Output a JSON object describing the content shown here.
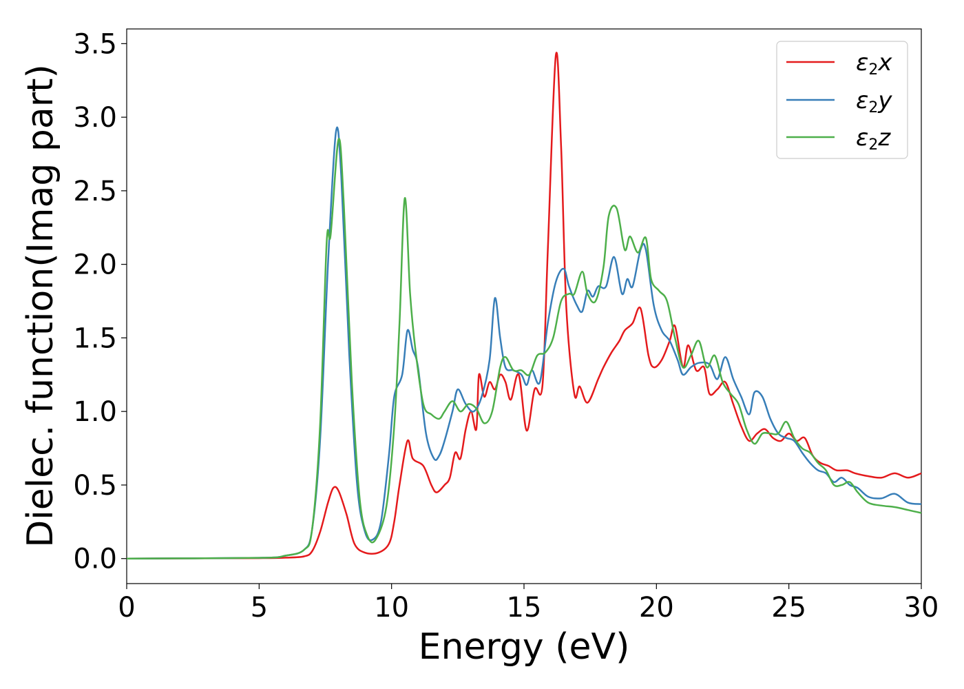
{
  "chart_data": {
    "type": "line",
    "title": "",
    "xlabel": "Energy (eV)",
    "ylabel": "Dielec. function(Imag part)",
    "xlim": [
      0,
      30
    ],
    "ylim": [
      -0.17,
      3.6
    ],
    "xticks": [
      0,
      5,
      10,
      15,
      20,
      25,
      30
    ],
    "xtick_labels": [
      "0",
      "5",
      "10",
      "15",
      "20",
      "25",
      "30"
    ],
    "yticks": [
      0.0,
      0.5,
      1.0,
      1.5,
      2.0,
      2.5,
      3.0,
      3.5
    ],
    "ytick_labels": [
      "0.0",
      "0.5",
      "1.0",
      "1.5",
      "2.0",
      "2.5",
      "3.0",
      "3.5"
    ],
    "grid": false,
    "legend_position": "top-right",
    "series": [
      {
        "name": "ε₂x",
        "legend_base": "ε",
        "legend_sub": "2",
        "legend_var": "x",
        "color": "#e41a1c",
        "points": [
          [
            0,
            0.0
          ],
          [
            5,
            0.003
          ],
          [
            6,
            0.006
          ],
          [
            6.7,
            0.015
          ],
          [
            7.0,
            0.05
          ],
          [
            7.3,
            0.18
          ],
          [
            7.6,
            0.38
          ],
          [
            7.8,
            0.48
          ],
          [
            8.0,
            0.46
          ],
          [
            8.3,
            0.3
          ],
          [
            8.6,
            0.1
          ],
          [
            9.0,
            0.04
          ],
          [
            9.5,
            0.04
          ],
          [
            9.9,
            0.1
          ],
          [
            10.1,
            0.25
          ],
          [
            10.3,
            0.5
          ],
          [
            10.6,
            0.8
          ],
          [
            10.8,
            0.68
          ],
          [
            11.2,
            0.63
          ],
          [
            11.5,
            0.5
          ],
          [
            11.7,
            0.45
          ],
          [
            12.0,
            0.5
          ],
          [
            12.2,
            0.55
          ],
          [
            12.4,
            0.72
          ],
          [
            12.6,
            0.68
          ],
          [
            12.8,
            0.88
          ],
          [
            13.0,
            1.0
          ],
          [
            13.2,
            0.88
          ],
          [
            13.3,
            1.25
          ],
          [
            13.5,
            1.1
          ],
          [
            13.7,
            1.2
          ],
          [
            13.9,
            1.15
          ],
          [
            14.1,
            1.25
          ],
          [
            14.3,
            1.2
          ],
          [
            14.5,
            1.08
          ],
          [
            14.8,
            1.25
          ],
          [
            15.1,
            0.87
          ],
          [
            15.4,
            1.15
          ],
          [
            15.7,
            1.18
          ],
          [
            15.9,
            2.1
          ],
          [
            16.2,
            3.42
          ],
          [
            16.4,
            2.8
          ],
          [
            16.6,
            1.7
          ],
          [
            16.9,
            1.12
          ],
          [
            17.1,
            1.17
          ],
          [
            17.4,
            1.06
          ],
          [
            17.8,
            1.22
          ],
          [
            18.0,
            1.3
          ],
          [
            18.3,
            1.4
          ],
          [
            18.6,
            1.48
          ],
          [
            18.8,
            1.55
          ],
          [
            19.1,
            1.6
          ],
          [
            19.4,
            1.7
          ],
          [
            19.7,
            1.38
          ],
          [
            19.9,
            1.3
          ],
          [
            20.2,
            1.35
          ],
          [
            20.5,
            1.48
          ],
          [
            20.7,
            1.58
          ],
          [
            21.0,
            1.3
          ],
          [
            21.2,
            1.45
          ],
          [
            21.5,
            1.28
          ],
          [
            21.8,
            1.3
          ],
          [
            22.0,
            1.12
          ],
          [
            22.3,
            1.15
          ],
          [
            22.6,
            1.2
          ],
          [
            22.9,
            1.05
          ],
          [
            23.2,
            0.9
          ],
          [
            23.5,
            0.8
          ],
          [
            23.8,
            0.85
          ],
          [
            24.1,
            0.88
          ],
          [
            24.4,
            0.82
          ],
          [
            24.7,
            0.8
          ],
          [
            25.0,
            0.85
          ],
          [
            25.3,
            0.8
          ],
          [
            25.6,
            0.82
          ],
          [
            25.9,
            0.7
          ],
          [
            26.2,
            0.65
          ],
          [
            26.5,
            0.63
          ],
          [
            26.8,
            0.6
          ],
          [
            27.2,
            0.6
          ],
          [
            27.5,
            0.58
          ],
          [
            28.0,
            0.56
          ],
          [
            28.5,
            0.55
          ],
          [
            29.0,
            0.58
          ],
          [
            29.5,
            0.55
          ],
          [
            30.0,
            0.58
          ]
        ]
      },
      {
        "name": "ε₂y",
        "legend_base": "ε",
        "legend_sub": "2",
        "legend_var": "y",
        "color": "#377eb8",
        "points": [
          [
            0,
            0.0
          ],
          [
            5,
            0.005
          ],
          [
            6,
            0.02
          ],
          [
            6.7,
            0.06
          ],
          [
            7.0,
            0.2
          ],
          [
            7.3,
            0.8
          ],
          [
            7.6,
            2.0
          ],
          [
            7.9,
            2.9
          ],
          [
            8.1,
            2.6
          ],
          [
            8.4,
            1.4
          ],
          [
            8.7,
            0.5
          ],
          [
            9.0,
            0.18
          ],
          [
            9.3,
            0.13
          ],
          [
            9.6,
            0.25
          ],
          [
            9.9,
            0.7
          ],
          [
            10.1,
            1.1
          ],
          [
            10.4,
            1.25
          ],
          [
            10.6,
            1.55
          ],
          [
            10.8,
            1.42
          ],
          [
            11.0,
            1.3
          ],
          [
            11.3,
            0.85
          ],
          [
            11.6,
            0.68
          ],
          [
            11.8,
            0.7
          ],
          [
            12.0,
            0.8
          ],
          [
            12.3,
            1.0
          ],
          [
            12.5,
            1.15
          ],
          [
            12.8,
            1.05
          ],
          [
            13.1,
            1.0
          ],
          [
            13.4,
            1.1
          ],
          [
            13.7,
            1.35
          ],
          [
            13.9,
            1.77
          ],
          [
            14.1,
            1.5
          ],
          [
            14.3,
            1.3
          ],
          [
            14.6,
            1.28
          ],
          [
            14.9,
            1.25
          ],
          [
            15.1,
            1.18
          ],
          [
            15.3,
            1.28
          ],
          [
            15.6,
            1.2
          ],
          [
            15.9,
            1.6
          ],
          [
            16.2,
            1.88
          ],
          [
            16.5,
            1.97
          ],
          [
            16.7,
            1.85
          ],
          [
            17.0,
            1.72
          ],
          [
            17.2,
            1.68
          ],
          [
            17.4,
            1.82
          ],
          [
            17.6,
            1.78
          ],
          [
            17.8,
            1.85
          ],
          [
            18.1,
            1.85
          ],
          [
            18.4,
            2.05
          ],
          [
            18.7,
            1.8
          ],
          [
            18.9,
            1.9
          ],
          [
            19.1,
            1.85
          ],
          [
            19.4,
            2.1
          ],
          [
            19.6,
            2.1
          ],
          [
            19.9,
            1.72
          ],
          [
            20.2,
            1.55
          ],
          [
            20.5,
            1.48
          ],
          [
            20.8,
            1.35
          ],
          [
            21.0,
            1.25
          ],
          [
            21.3,
            1.3
          ],
          [
            21.6,
            1.33
          ],
          [
            22.0,
            1.32
          ],
          [
            22.3,
            1.22
          ],
          [
            22.6,
            1.37
          ],
          [
            22.9,
            1.22
          ],
          [
            23.2,
            1.1
          ],
          [
            23.5,
            0.98
          ],
          [
            23.7,
            1.13
          ],
          [
            24.0,
            1.1
          ],
          [
            24.3,
            0.95
          ],
          [
            24.6,
            0.85
          ],
          [
            24.9,
            0.82
          ],
          [
            25.2,
            0.8
          ],
          [
            25.5,
            0.72
          ],
          [
            25.8,
            0.65
          ],
          [
            26.1,
            0.6
          ],
          [
            26.4,
            0.58
          ],
          [
            26.7,
            0.52
          ],
          [
            27.0,
            0.55
          ],
          [
            27.3,
            0.5
          ],
          [
            27.6,
            0.48
          ],
          [
            28.0,
            0.42
          ],
          [
            28.5,
            0.41
          ],
          [
            29.0,
            0.44
          ],
          [
            29.5,
            0.38
          ],
          [
            30.0,
            0.37
          ]
        ]
      },
      {
        "name": "ε₂z",
        "legend_base": "ε",
        "legend_sub": "2",
        "legend_var": "z",
        "color": "#4daf4a",
        "points": [
          [
            0,
            0.0
          ],
          [
            5,
            0.005
          ],
          [
            6,
            0.02
          ],
          [
            6.7,
            0.06
          ],
          [
            7.0,
            0.2
          ],
          [
            7.3,
            0.9
          ],
          [
            7.55,
            2.15
          ],
          [
            7.7,
            2.2
          ],
          [
            8.0,
            2.85
          ],
          [
            8.2,
            2.4
          ],
          [
            8.5,
            1.2
          ],
          [
            8.8,
            0.4
          ],
          [
            9.1,
            0.15
          ],
          [
            9.4,
            0.13
          ],
          [
            9.8,
            0.35
          ],
          [
            10.1,
            0.9
          ],
          [
            10.3,
            1.6
          ],
          [
            10.5,
            2.45
          ],
          [
            10.7,
            1.8
          ],
          [
            10.9,
            1.42
          ],
          [
            11.2,
            1.05
          ],
          [
            11.5,
            0.98
          ],
          [
            11.8,
            0.95
          ],
          [
            12.0,
            1.0
          ],
          [
            12.3,
            1.07
          ],
          [
            12.6,
            1.0
          ],
          [
            12.9,
            1.05
          ],
          [
            13.2,
            1.02
          ],
          [
            13.5,
            0.92
          ],
          [
            13.8,
            1.0
          ],
          [
            14.1,
            1.3
          ],
          [
            14.3,
            1.37
          ],
          [
            14.6,
            1.28
          ],
          [
            14.9,
            1.28
          ],
          [
            15.2,
            1.25
          ],
          [
            15.5,
            1.38
          ],
          [
            15.8,
            1.4
          ],
          [
            16.1,
            1.5
          ],
          [
            16.4,
            1.75
          ],
          [
            16.7,
            1.8
          ],
          [
            16.9,
            1.8
          ],
          [
            17.2,
            1.95
          ],
          [
            17.4,
            1.8
          ],
          [
            17.7,
            1.75
          ],
          [
            18.0,
            1.98
          ],
          [
            18.2,
            2.33
          ],
          [
            18.5,
            2.38
          ],
          [
            18.8,
            2.1
          ],
          [
            19.0,
            2.19
          ],
          [
            19.3,
            2.08
          ],
          [
            19.6,
            2.18
          ],
          [
            19.8,
            1.9
          ],
          [
            20.1,
            1.82
          ],
          [
            20.4,
            1.75
          ],
          [
            20.7,
            1.5
          ],
          [
            21.0,
            1.3
          ],
          [
            21.3,
            1.38
          ],
          [
            21.6,
            1.48
          ],
          [
            21.9,
            1.3
          ],
          [
            22.2,
            1.38
          ],
          [
            22.5,
            1.2
          ],
          [
            22.8,
            1.12
          ],
          [
            23.1,
            1.05
          ],
          [
            23.4,
            0.88
          ],
          [
            23.7,
            0.78
          ],
          [
            24.0,
            0.85
          ],
          [
            24.3,
            0.85
          ],
          [
            24.6,
            0.85
          ],
          [
            24.9,
            0.93
          ],
          [
            25.2,
            0.82
          ],
          [
            25.5,
            0.75
          ],
          [
            25.8,
            0.72
          ],
          [
            26.1,
            0.65
          ],
          [
            26.4,
            0.6
          ],
          [
            26.7,
            0.5
          ],
          [
            27.0,
            0.5
          ],
          [
            27.3,
            0.52
          ],
          [
            27.6,
            0.45
          ],
          [
            28.0,
            0.38
          ],
          [
            28.5,
            0.36
          ],
          [
            29.0,
            0.35
          ],
          [
            29.5,
            0.33
          ],
          [
            30.0,
            0.31
          ]
        ]
      }
    ]
  }
}
